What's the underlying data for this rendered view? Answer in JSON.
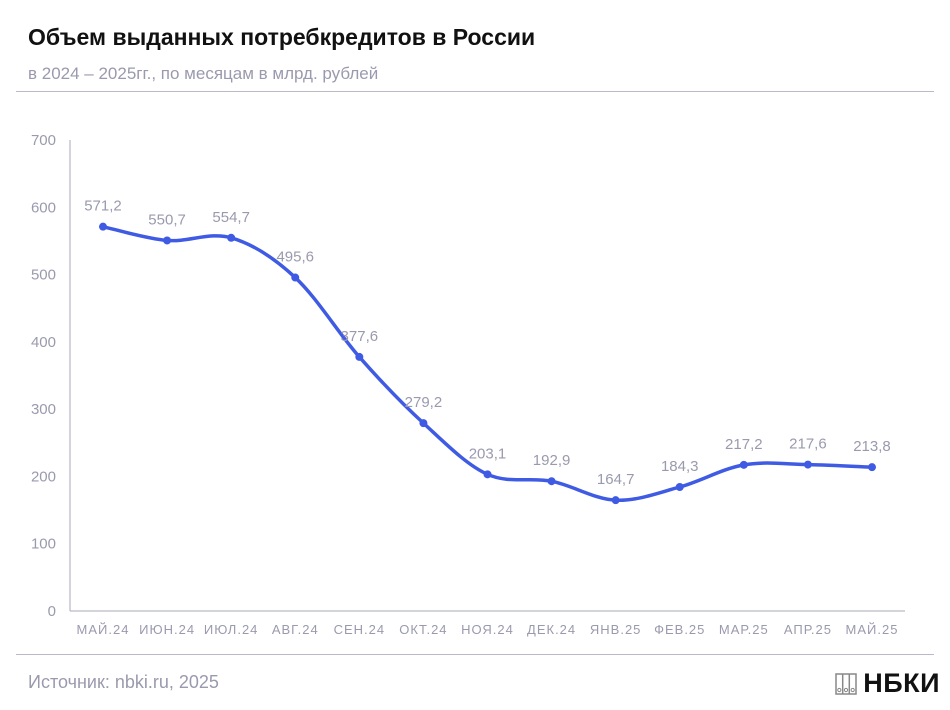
{
  "header": {
    "title": "Объем выданных потребкредитов в России",
    "subtitle": "в 2024 – 2025гг., по месяцам в млрд. рублей"
  },
  "footer": {
    "source": "Источник: nbki.ru, 2025",
    "logo_text": "НБКИ"
  },
  "colors": {
    "line": "#3f5be3",
    "text": "#9a9aae",
    "axis": "#a9a9bb"
  },
  "chart_data": {
    "type": "line",
    "title": "Объем выданных потребкредитов в России",
    "categories": [
      "МАЙ.24",
      "ИЮН.24",
      "ИЮЛ.24",
      "АВГ.24",
      "СЕН.24",
      "ОКТ.24",
      "НОЯ.24",
      "ДЕК.24",
      "ЯНВ.25",
      "ФЕВ.25",
      "МАР.25",
      "АПР.25",
      "МАЙ.25"
    ],
    "values": [
      571.2,
      550.7,
      554.7,
      495.6,
      377.6,
      279.2,
      203.1,
      192.9,
      164.7,
      184.3,
      217.2,
      217.6,
      213.8
    ],
    "data_labels": [
      "571,2",
      "550,7",
      "554,7",
      "495,6",
      "377,6",
      "279,2",
      "203,1",
      "192,9",
      "164,7",
      "184,3",
      "217,2",
      "217,6",
      "213,8"
    ],
    "yticks": [
      0,
      100,
      200,
      300,
      400,
      500,
      600,
      700
    ],
    "ylim": [
      0,
      700
    ],
    "xlabel": "",
    "ylabel": "",
    "grid": false,
    "legend": "none"
  }
}
